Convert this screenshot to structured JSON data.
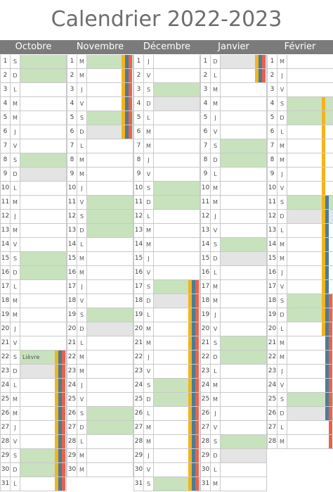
{
  "title": "Calendrier 2022-2023",
  "colors": {
    "header_bg": "#7b7b7b",
    "weekend": "#c8e2bd",
    "holiday": "#e4e4e4",
    "zone_a": "#f5b31b",
    "zone_b": "#4a7d96",
    "zone_c": "#e8624f"
  },
  "months": [
    {
      "name": "Octobre",
      "days": 31,
      "weekdays": [
        "S",
        "D",
        "L",
        "M",
        "M",
        "J",
        "V",
        "S",
        "D",
        "L",
        "M",
        "J",
        "M",
        "V",
        "S",
        "D",
        "L",
        "M",
        "M",
        "J",
        "V",
        "S",
        "D",
        "L",
        "M",
        "M",
        "J",
        "V",
        "S",
        "D",
        "L"
      ],
      "weekend_days": [
        1,
        2,
        8,
        9,
        15,
        16,
        22,
        23,
        29,
        30
      ],
      "holiday_days": [
        9,
        23
      ],
      "notes": [
        {
          "day": 22,
          "text": "Lièvre"
        }
      ],
      "zones": [
        {
          "zone": "A",
          "from": 22,
          "to": 31
        },
        {
          "zone": "B",
          "from": 22,
          "to": 31
        },
        {
          "zone": "C",
          "from": 22,
          "to": 31
        }
      ]
    },
    {
      "name": "Novembre",
      "days": 30,
      "weekdays": [
        "M",
        "M",
        "J",
        "V",
        "S",
        "D",
        "L",
        "M",
        "M",
        "J",
        "V",
        "S",
        "D",
        "L",
        "M",
        "M",
        "J",
        "V",
        "S",
        "D",
        "L",
        "M",
        "M",
        "J",
        "V",
        "S",
        "D",
        "L",
        "M",
        "M"
      ],
      "weekend_days": [
        1,
        5,
        6,
        11,
        12,
        13,
        19,
        20,
        26,
        27
      ],
      "holiday_days": [
        6,
        20
      ],
      "notes": [],
      "zones": [
        {
          "zone": "A",
          "from": 1,
          "to": 6
        },
        {
          "zone": "B",
          "from": 1,
          "to": 6
        },
        {
          "zone": "C",
          "from": 1,
          "to": 6
        }
      ]
    },
    {
      "name": "Décembre",
      "days": 31,
      "weekdays": [
        "J",
        "V",
        "S",
        "D",
        "L",
        "M",
        "M",
        "J",
        "V",
        "S",
        "D",
        "L",
        "M",
        "M",
        "J",
        "V",
        "S",
        "D",
        "L",
        "M",
        "M",
        "J",
        "V",
        "S",
        "D",
        "L",
        "M",
        "M",
        "J",
        "V",
        "S"
      ],
      "weekend_days": [
        3,
        4,
        10,
        11,
        17,
        18,
        24,
        25,
        31
      ],
      "holiday_days": [
        4,
        18
      ],
      "notes": [],
      "zones": [
        {
          "zone": "A",
          "from": 17,
          "to": 31
        },
        {
          "zone": "B",
          "from": 17,
          "to": 31
        },
        {
          "zone": "C",
          "from": 17,
          "to": 31
        }
      ]
    },
    {
      "name": "Janvier",
      "days": 31,
      "weekdays": [
        "D",
        "L",
        "M",
        "M",
        "J",
        "V",
        "S",
        "D",
        "L",
        "M",
        "M",
        "J",
        "V",
        "S",
        "D",
        "L",
        "M",
        "M",
        "J",
        "V",
        "S",
        "D",
        "L",
        "M",
        "M",
        "J",
        "V",
        "S",
        "D",
        "L",
        "M"
      ],
      "weekend_days": [
        1,
        7,
        8,
        14,
        15,
        21,
        22,
        28,
        29
      ],
      "holiday_days": [
        1,
        15,
        29
      ],
      "notes": [],
      "zones": [
        {
          "zone": "A",
          "from": 1,
          "to": 2
        },
        {
          "zone": "B",
          "from": 1,
          "to": 2
        },
        {
          "zone": "C",
          "from": 1,
          "to": 2
        }
      ]
    },
    {
      "name": "Février",
      "days": 28,
      "weekdays": [
        "M",
        "J",
        "V",
        "S",
        "D",
        "L",
        "M",
        "M",
        "J",
        "V",
        "S",
        "D",
        "L",
        "M",
        "M",
        "J",
        "V",
        "S",
        "D",
        "L",
        "M",
        "M",
        "J",
        "V",
        "S",
        "D",
        "L",
        "M"
      ],
      "weekend_days": [
        4,
        5,
        11,
        12,
        18,
        19,
        25,
        26
      ],
      "holiday_days": [
        12,
        26
      ],
      "notes": [],
      "zones": [
        {
          "zone": "A",
          "from": 4,
          "to": 20
        },
        {
          "zone": "B",
          "from": 11,
          "to": 26
        },
        {
          "zone": "C",
          "from": 18,
          "to": 28
        }
      ]
    }
  ]
}
